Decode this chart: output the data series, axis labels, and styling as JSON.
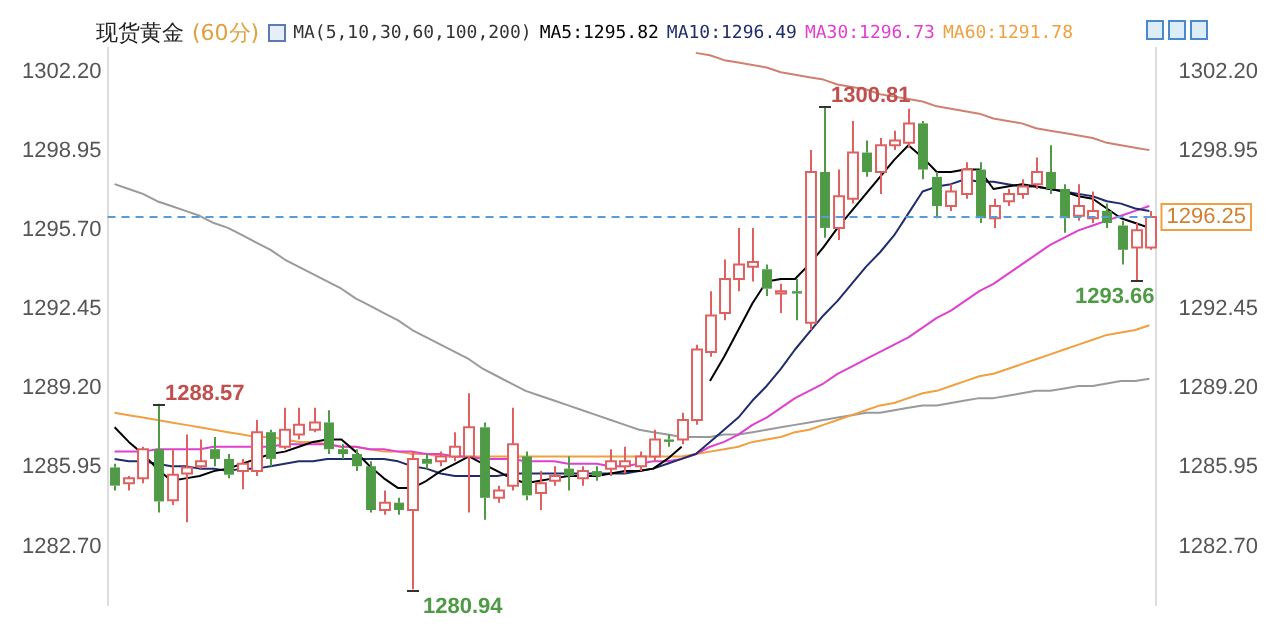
{
  "chart_data": {
    "type": "candlestick",
    "title": "现货黄金",
    "subtitle": "(60分)",
    "categories": [
      null,
      null,
      null,
      null,
      null,
      null,
      null,
      null,
      null,
      null,
      null,
      null,
      null,
      null,
      null,
      null,
      null,
      null,
      null,
      null,
      null,
      null,
      null,
      null,
      null,
      null,
      null,
      null,
      null,
      null,
      null,
      null,
      null,
      null,
      null,
      null,
      null,
      null,
      null,
      null,
      null,
      null,
      null,
      null,
      null,
      null,
      null,
      null,
      null,
      null,
      null,
      null,
      null,
      null,
      null,
      null,
      null,
      null,
      null,
      null,
      null,
      null,
      null,
      null,
      null,
      null,
      null,
      null,
      null,
      null,
      null,
      null,
      null,
      null
    ],
    "ohlc": [
      [
        1285.95,
        1286.1,
        1285.0,
        1285.2
      ],
      [
        1285.3,
        1285.6,
        1285.0,
        1285.5
      ],
      [
        1285.5,
        1286.8,
        1285.3,
        1286.7
      ],
      [
        1286.7,
        1288.57,
        1284.1,
        1284.55
      ],
      [
        1284.6,
        1286.7,
        1284.4,
        1285.65
      ],
      [
        1285.7,
        1287.3,
        1283.7,
        1285.95
      ],
      [
        1286.0,
        1287.1,
        1285.9,
        1286.2
      ],
      [
        1286.7,
        1287.2,
        1286.0,
        1286.3
      ],
      [
        1286.3,
        1286.5,
        1285.5,
        1285.65
      ],
      [
        1285.8,
        1286.3,
        1285.05,
        1286.1
      ],
      [
        1285.8,
        1287.9,
        1285.6,
        1287.4
      ],
      [
        1287.4,
        1287.5,
        1286.0,
        1286.3
      ],
      [
        1286.8,
        1288.4,
        1286.7,
        1287.5
      ],
      [
        1287.3,
        1288.4,
        1287.1,
        1287.7
      ],
      [
        1287.5,
        1288.4,
        1287.4,
        1287.8
      ],
      [
        1287.8,
        1288.3,
        1286.5,
        1286.7
      ],
      [
        1286.7,
        1286.9,
        1286.3,
        1286.5
      ],
      [
        1286.5,
        1286.7,
        1285.8,
        1286.0
      ],
      [
        1286.0,
        1286.2,
        1284.1,
        1284.2
      ],
      [
        1284.2,
        1285.0,
        1284.0,
        1284.5
      ],
      [
        1284.5,
        1284.7,
        1284.0,
        1284.2
      ],
      [
        1284.2,
        1286.6,
        1280.94,
        1286.3
      ],
      [
        1286.3,
        1286.5,
        1285.9,
        1286.1
      ],
      [
        1286.2,
        1286.6,
        1286.0,
        1286.4
      ],
      [
        1286.4,
        1287.4,
        1286.2,
        1286.8
      ],
      [
        1286.4,
        1289.0,
        1284.1,
        1287.6
      ],
      [
        1287.6,
        1287.8,
        1283.8,
        1284.7
      ],
      [
        1284.7,
        1285.2,
        1284.5,
        1285.0
      ],
      [
        1285.2,
        1288.4,
        1285.0,
        1286.9
      ],
      [
        1286.4,
        1286.6,
        1284.6,
        1284.8
      ],
      [
        1284.9,
        1285.8,
        1284.2,
        1285.3
      ],
      [
        1285.4,
        1286.0,
        1285.2,
        1285.6
      ],
      [
        1285.9,
        1286.4,
        1285.0,
        1285.6
      ],
      [
        1285.5,
        1286.0,
        1285.2,
        1285.8
      ],
      [
        1285.8,
        1286.0,
        1285.4,
        1285.6
      ],
      [
        1285.9,
        1286.7,
        1285.6,
        1286.2
      ],
      [
        1286.0,
        1286.8,
        1285.7,
        1286.2
      ],
      [
        1286.0,
        1286.6,
        1285.8,
        1286.4
      ],
      [
        1286.4,
        1287.5,
        1286.2,
        1287.1
      ],
      [
        1287.1,
        1287.3,
        1286.8,
        1287.0
      ],
      [
        1287.1,
        1288.2,
        1286.9,
        1287.9
      ],
      [
        1287.9,
        1291.0,
        1287.7,
        1290.8
      ],
      [
        1290.7,
        1293.2,
        1290.5,
        1292.2
      ],
      [
        1292.3,
        1294.5,
        1292.0,
        1293.7
      ],
      [
        1293.7,
        1295.8,
        1293.2,
        1294.3
      ],
      [
        1294.2,
        1295.8,
        1293.6,
        1294.4
      ],
      [
        1294.1,
        1294.3,
        1293.0,
        1293.3
      ],
      [
        1293.1,
        1293.5,
        1292.3,
        1293.2
      ],
      [
        1293.2,
        1293.7,
        1292.0,
        1293.1
      ],
      [
        1291.9,
        1299.0,
        1291.6,
        1298.1
      ],
      [
        1298.1,
        1300.81,
        1295.4,
        1295.8
      ],
      [
        1295.8,
        1298.2,
        1295.3,
        1297.1
      ],
      [
        1297.0,
        1300.2,
        1296.8,
        1298.9
      ],
      [
        1298.9,
        1299.4,
        1297.9,
        1298.1
      ],
      [
        1298.1,
        1299.5,
        1297.2,
        1299.2
      ],
      [
        1299.2,
        1299.8,
        1299.0,
        1299.4
      ],
      [
        1299.3,
        1300.7,
        1299.1,
        1300.1
      ],
      [
        1300.1,
        1300.2,
        1297.8,
        1298.2
      ],
      [
        1297.9,
        1298.1,
        1296.2,
        1296.7
      ],
      [
        1296.7,
        1297.6,
        1296.5,
        1297.3
      ],
      [
        1297.2,
        1298.5,
        1297.0,
        1298.2
      ],
      [
        1298.2,
        1298.5,
        1296.0,
        1296.2
      ],
      [
        1296.2,
        1297.0,
        1295.8,
        1296.7
      ],
      [
        1296.9,
        1297.4,
        1296.7,
        1297.2
      ],
      [
        1297.2,
        1297.8,
        1297.0,
        1297.5
      ],
      [
        1297.6,
        1298.7,
        1297.4,
        1298.1
      ],
      [
        1298.1,
        1299.2,
        1297.2,
        1297.4
      ],
      [
        1297.4,
        1297.6,
        1295.6,
        1296.2
      ],
      [
        1296.3,
        1297.6,
        1296.1,
        1296.7
      ],
      [
        1296.2,
        1297.3,
        1296.0,
        1296.5
      ],
      [
        1296.5,
        1296.8,
        1295.8,
        1296.0
      ],
      [
        1295.9,
        1296.1,
        1294.3,
        1294.9
      ],
      [
        1295.0,
        1296.0,
        1293.66,
        1295.7
      ],
      [
        1295.0,
        1296.5,
        1294.9,
        1296.25
      ]
    ],
    "series": [
      {
        "name": "MA5:1295.82",
        "type": "line",
        "color": "#000000",
        "values": [
          1287.6,
          1287.0,
          1286.5,
          1285.9,
          1285.4,
          1285.5,
          1285.6,
          1285.8,
          1285.9,
          1286.1,
          1286.3,
          1286.5,
          1286.6,
          1286.8,
          1287.0,
          1287.1,
          1287.1,
          1286.6,
          1286.0,
          1285.5,
          1285.1,
          1285.1,
          1285.4,
          1285.8,
          1286.1,
          1286.4,
          1286.1,
          1285.8,
          1285.5,
          1285.3,
          1285.4,
          1285.5,
          1285.6,
          1285.6,
          1285.6,
          1285.7,
          1285.8,
          1285.8,
          1285.9,
          1286.3,
          1286.8,
          null,
          1289.5,
          1290.5,
          1291.6,
          1292.7,
          1293.6,
          1293.7,
          1293.7,
          1294.3,
          1295.0,
          1295.8,
          1296.5,
          1297.2,
          1297.9,
          1298.6,
          1299.2,
          1298.7,
          1298.1,
          1298.1,
          1298.2,
          1298.2,
          1297.4,
          1297.5,
          1297.6,
          1297.5,
          1297.4,
          1297.3,
          1297.1,
          1297.0,
          1296.6,
          1296.2,
          1296.0,
          1295.8
        ]
      },
      {
        "name": "MA10:1296.49",
        "type": "line",
        "color": "#1f2d6b",
        "values": [
          1286.3,
          1286.2,
          1286.2,
          1286.1,
          1286.0,
          1286.0,
          1285.9,
          1285.9,
          1285.8,
          1285.9,
          1285.9,
          1286.0,
          1286.1,
          1286.2,
          1286.2,
          1286.3,
          1286.3,
          1286.3,
          1286.3,
          1286.3,
          1286.2,
          1286.0,
          1285.9,
          1285.7,
          1285.6,
          1285.6,
          1285.6,
          1285.6,
          1285.7,
          1285.7,
          1285.7,
          1285.7,
          1285.7,
          1285.7,
          1285.7,
          1285.7,
          1285.7,
          1285.8,
          1285.9,
          1286.1,
          1286.3,
          1286.5,
          1287.0,
          1287.5,
          1288.0,
          1288.7,
          1289.3,
          1290.0,
          1290.8,
          1291.5,
          1292.2,
          1292.8,
          1293.5,
          1294.2,
          1294.8,
          1295.5,
          1296.4,
          1297.3,
          1297.5,
          1297.6,
          1297.8,
          1297.7,
          1297.7,
          1297.6,
          1297.5,
          1297.5,
          1297.4,
          1297.3,
          1297.2,
          1297.1,
          1296.9,
          1296.8,
          1296.6,
          1296.5
        ]
      },
      {
        "name": "MA30:1296.73",
        "type": "line",
        "color": "#e040d0",
        "values": [
          1286.6,
          1286.6,
          1286.6,
          1286.7,
          1286.7,
          1286.7,
          1286.7,
          1286.8,
          1286.8,
          1286.8,
          1286.8,
          1286.8,
          1286.9,
          1286.9,
          1286.9,
          1286.9,
          1286.8,
          1286.8,
          1286.7,
          1286.7,
          1286.6,
          1286.6,
          1286.5,
          1286.5,
          1286.4,
          1286.4,
          1286.3,
          1286.3,
          1286.3,
          1286.2,
          1286.2,
          1286.2,
          1286.1,
          1286.1,
          1286.1,
          1286.0,
          1286.0,
          1286.1,
          1286.2,
          1286.2,
          1286.3,
          1286.5,
          1286.8,
          1287.0,
          1287.3,
          1287.7,
          1288.0,
          1288.4,
          1288.8,
          1289.1,
          1289.4,
          1289.8,
          1290.1,
          1290.4,
          1290.7,
          1291.0,
          1291.3,
          1291.7,
          1292.1,
          1292.4,
          1292.8,
          1293.2,
          1293.5,
          1293.9,
          1294.3,
          1294.7,
          1295.1,
          1295.4,
          1295.7,
          1295.9,
          1296.1,
          1296.3,
          1296.5,
          1296.7
        ]
      },
      {
        "name": "MA60:1291.78",
        "type": "line",
        "color": "#f0a040",
        "values": [
          1288.2,
          1288.1,
          1288.0,
          1287.9,
          1287.8,
          1287.7,
          1287.6,
          1287.5,
          1287.4,
          1287.3,
          1287.2,
          1287.2,
          1287.1,
          1287.0,
          1287.0,
          1286.9,
          1286.8,
          1286.8,
          1286.7,
          1286.6,
          1286.6,
          1286.5,
          1286.5,
          1286.4,
          1286.4,
          1286.4,
          1286.4,
          1286.4,
          1286.4,
          1286.4,
          1286.4,
          1286.4,
          1286.4,
          1286.4,
          1286.4,
          1286.4,
          1286.4,
          1286.4,
          1286.4,
          1286.4,
          1286.4,
          1286.5,
          1286.6,
          1286.7,
          1286.8,
          1287.0,
          1287.1,
          1287.2,
          1287.4,
          1287.5,
          1287.7,
          1287.9,
          1288.1,
          1288.3,
          1288.5,
          1288.6,
          1288.8,
          1289.0,
          1289.1,
          1289.3,
          1289.5,
          1289.7,
          1289.8,
          1290.0,
          1290.2,
          1290.4,
          1290.6,
          1290.8,
          1291.0,
          1291.2,
          1291.4,
          1291.5,
          1291.6,
          1291.8
        ]
      },
      {
        "type": "line",
        "color": "#9a9a9a",
        "values": [
          1297.6,
          1297.4,
          1297.2,
          1296.9,
          1296.7,
          1296.5,
          1296.3,
          1296.0,
          1295.8,
          1295.5,
          1295.2,
          1294.9,
          1294.5,
          1294.2,
          1293.9,
          1293.6,
          1293.3,
          1292.9,
          1292.6,
          1292.3,
          1292.0,
          1291.6,
          1291.3,
          1291.0,
          1290.7,
          1290.4,
          1290.0,
          1289.7,
          1289.4,
          1289.1,
          1288.9,
          1288.7,
          1288.5,
          1288.3,
          1288.1,
          1287.9,
          1287.7,
          1287.5,
          1287.4,
          1287.3,
          1287.2,
          1287.2,
          1287.2,
          1287.3,
          1287.3,
          1287.4,
          1287.5,
          1287.6,
          1287.7,
          1287.8,
          1287.9,
          1288.0,
          1288.1,
          1288.2,
          1288.2,
          1288.3,
          1288.4,
          1288.5,
          1288.5,
          1288.6,
          1288.7,
          1288.8,
          1288.8,
          1288.9,
          1289.0,
          1289.1,
          1289.1,
          1289.2,
          1289.3,
          1289.3,
          1289.4,
          1289.5,
          1289.5,
          1289.6
        ]
      },
      {
        "type": "line",
        "color": "#d08070",
        "values": [
          null,
          null,
          null,
          null,
          null,
          null,
          null,
          null,
          null,
          null,
          null,
          null,
          null,
          null,
          null,
          null,
          null,
          null,
          null,
          null,
          null,
          null,
          null,
          null,
          null,
          null,
          null,
          null,
          null,
          null,
          null,
          null,
          null,
          null,
          null,
          null,
          null,
          null,
          null,
          null,
          null,
          1303.0,
          1302.9,
          1302.7,
          1302.6,
          1302.5,
          1302.4,
          1302.2,
          1302.1,
          1302.0,
          1301.9,
          1301.7,
          1301.6,
          1301.5,
          1301.3,
          1301.2,
          1301.1,
          1301.0,
          1300.8,
          1300.7,
          1300.6,
          1300.5,
          1300.3,
          1300.2,
          1300.1,
          1299.9,
          1299.8,
          1299.7,
          1299.6,
          1299.5,
          1299.3,
          1299.2,
          1299.1,
          1299.0
        ]
      }
    ],
    "ylim": [
      1280.3,
      1303.2
    ],
    "yticks": [
      {
        "value": 1282.7,
        "label": "1282.70"
      },
      1285.95,
      {
        "value": 1289.2,
        "label": "1289.20"
      },
      1292.45,
      {
        "value": 1295.7,
        "label": "1295.70"
      },
      1298.95,
      {
        "value": 1302.2,
        "label": "1302.20"
      }
    ],
    "y2lim": [
      1280.3,
      1303.2
    ],
    "y2ticks": [
      {
        "value": 1282.7,
        "label": "1282.70"
      },
      1285.95,
      {
        "value": 1289.2,
        "label": "1289.20"
      },
      1292.45,
      1298.95,
      {
        "value": 1302.2,
        "label": "1302.20"
      }
    ],
    "ref_lines": [
      {
        "axis": "y",
        "value": 1296.25,
        "label": "1296.25",
        "color": "#5b9bd5",
        "line_style": "dashed"
      }
    ],
    "annotations": [
      "MA(5,10,30,60,100,200)",
      "1288.57",
      "1280.94",
      "1300.81",
      "1293.66"
    ],
    "legend": "top"
  }
}
